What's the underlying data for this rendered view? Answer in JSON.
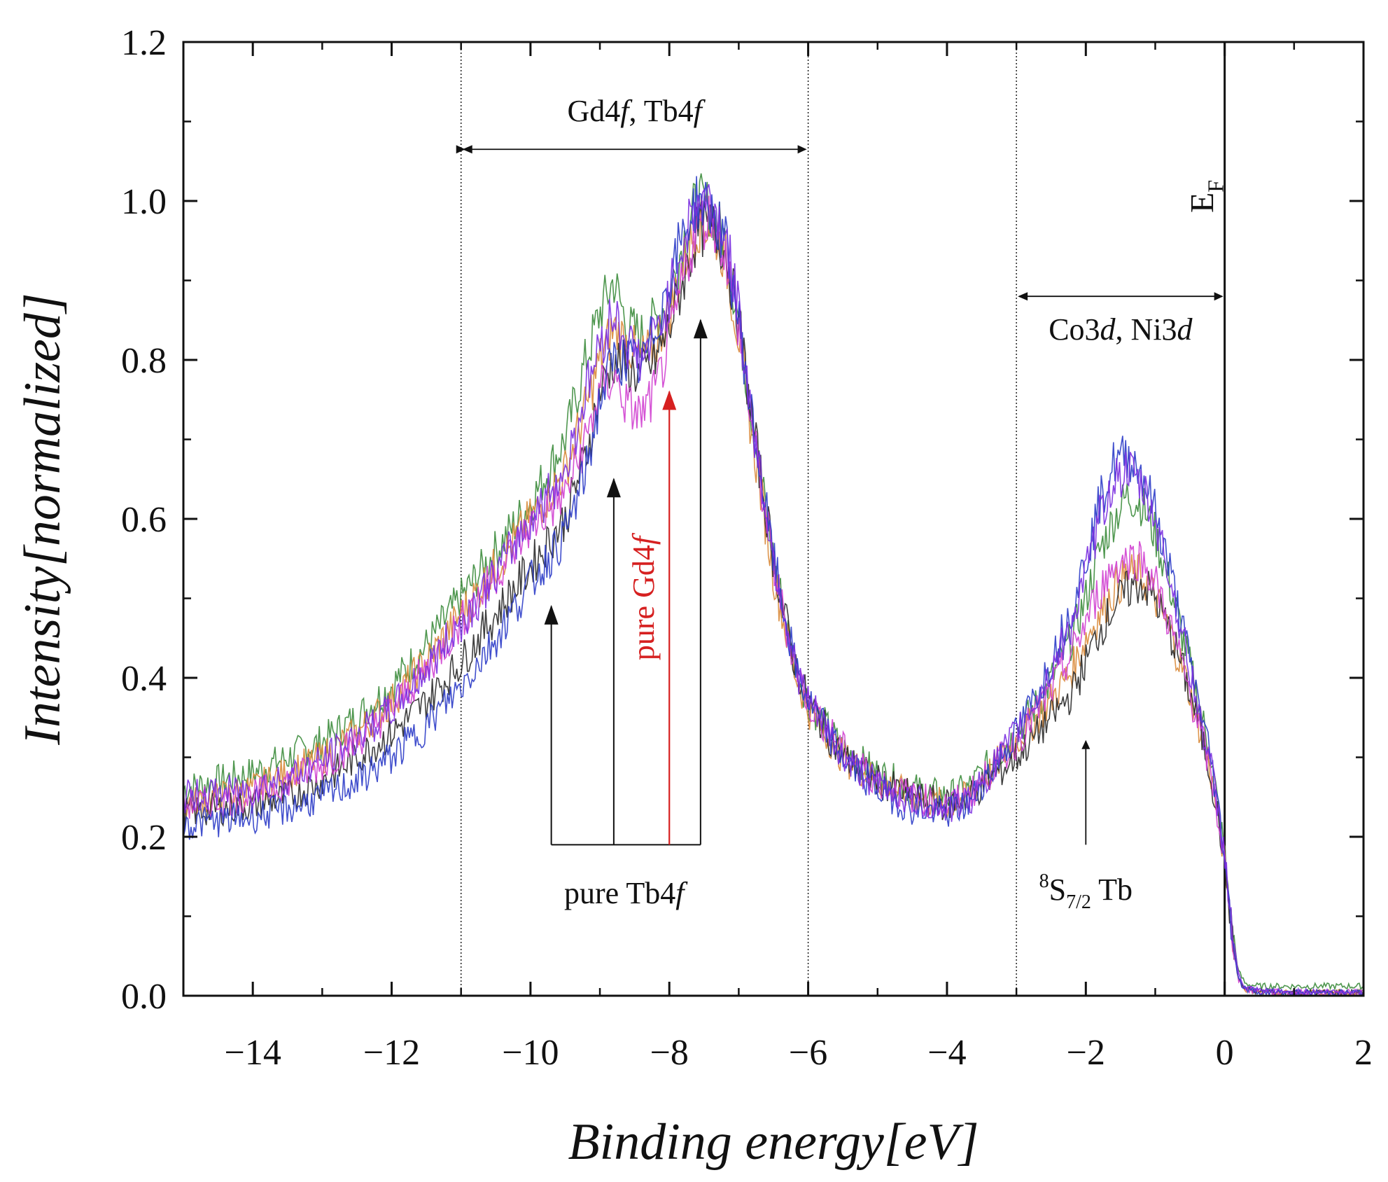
{
  "chart_data": {
    "type": "line",
    "title": "",
    "xlabel": "Binding energy[eV]",
    "ylabel": "Intensity[normalized]",
    "xlim": [
      -15,
      2
    ],
    "ylim": [
      0,
      1.2
    ],
    "x_ticks": [
      -14,
      -12,
      -10,
      -8,
      -6,
      -4,
      -2,
      0,
      2
    ],
    "y_ticks": [
      0.0,
      0.2,
      0.4,
      0.6,
      0.8,
      1.0,
      1.2
    ],
    "x_tick_labels": [
      "−14",
      "−12",
      "−10",
      "−8",
      "−6",
      "−4",
      "−2",
      "0",
      "2"
    ],
    "y_tick_labels": [
      "0.0",
      "0.2",
      "0.4",
      "0.6",
      "0.8",
      "1.0",
      "1.2"
    ],
    "grid": false,
    "vertical_lines": [
      -11,
      -6,
      -3,
      0
    ],
    "fermi_level_label": "E",
    "fermi_level_subscript": "F",
    "annotations": {
      "gd_tb_4f": {
        "text": "Gd4",
        "italic_part": "f",
        "mid": ", Tb4",
        "italic_end": "f",
        "x_range": [
          -11,
          -6
        ],
        "y": 1.065
      },
      "co_ni_3d": {
        "text": "Co3",
        "italic_part": "d",
        "mid": ", Ni3",
        "italic_end": "d",
        "x_range": [
          -3,
          0
        ],
        "y": 0.88
      },
      "pure_tb4f": {
        "text": "pure Tb4",
        "italic_part": "f",
        "arrow_x": [
          -9.7,
          -8.8,
          -7.55
        ],
        "arrow_tips": [
          0.49,
          0.65,
          0.85
        ],
        "base_y": 0.19
      },
      "pure_gd4f": {
        "text": "pure Gd4",
        "italic_part": "f",
        "arrow_x": -8.0,
        "arrow_tip": 0.76,
        "base_y": 0.19
      },
      "s72_tb": {
        "sup": "8",
        "base": "S",
        "sub": "7/2",
        "tail": " Tb",
        "arrow_x": -2.0,
        "arrow_base": 0.19,
        "arrow_tip": 0.32
      }
    },
    "series": [
      {
        "name": "green",
        "color": "#3c8c3c",
        "x": [
          -15,
          -14.5,
          -14,
          -13.5,
          -13,
          -12.5,
          -12,
          -11.5,
          -11,
          -10.5,
          -10,
          -9.5,
          -9.2,
          -9,
          -8.8,
          -8.6,
          -8.4,
          -8.2,
          -8,
          -7.8,
          -7.6,
          -7.4,
          -7.2,
          -7,
          -6.8,
          -6.5,
          -6.2,
          -6,
          -5.5,
          -5,
          -4.5,
          -4,
          -3.7,
          -3.4,
          -3,
          -2.6,
          -2.2,
          -2,
          -1.8,
          -1.6,
          -1.4,
          -1.2,
          -1,
          -0.8,
          -0.6,
          -0.4,
          -0.2,
          0,
          0.1,
          0.2,
          0.3,
          0.5,
          1,
          2
        ],
        "y": [
          0.26,
          0.27,
          0.28,
          0.3,
          0.32,
          0.35,
          0.39,
          0.44,
          0.5,
          0.56,
          0.62,
          0.7,
          0.8,
          0.86,
          0.9,
          0.84,
          0.83,
          0.85,
          0.88,
          0.95,
          1.0,
          0.99,
          0.95,
          0.85,
          0.72,
          0.55,
          0.42,
          0.37,
          0.31,
          0.28,
          0.26,
          0.25,
          0.26,
          0.29,
          0.33,
          0.38,
          0.45,
          0.5,
          0.56,
          0.6,
          0.63,
          0.62,
          0.58,
          0.52,
          0.45,
          0.38,
          0.3,
          0.18,
          0.09,
          0.03,
          0.015,
          0.012,
          0.012,
          0.012
        ]
      },
      {
        "name": "orange",
        "color": "#d98a3a",
        "x": [
          -15,
          -14.5,
          -14,
          -13.5,
          -13,
          -12.5,
          -12,
          -11.5,
          -11,
          -10.5,
          -10,
          -9.5,
          -9.2,
          -9,
          -8.8,
          -8.6,
          -8.4,
          -8.2,
          -8,
          -7.8,
          -7.6,
          -7.4,
          -7.2,
          -7,
          -6.8,
          -6.5,
          -6.2,
          -6,
          -5.5,
          -5,
          -4.5,
          -4,
          -3.7,
          -3.4,
          -3,
          -2.6,
          -2.2,
          -2,
          -1.8,
          -1.6,
          -1.4,
          -1.2,
          -1,
          -0.8,
          -0.6,
          -0.4,
          -0.2,
          0,
          0.1,
          0.2,
          0.3,
          0.5,
          1,
          2
        ],
        "y": [
          0.24,
          0.25,
          0.26,
          0.28,
          0.3,
          0.33,
          0.37,
          0.42,
          0.48,
          0.54,
          0.6,
          0.66,
          0.74,
          0.8,
          0.84,
          0.82,
          0.8,
          0.82,
          0.86,
          0.92,
          0.97,
          0.97,
          0.93,
          0.83,
          0.7,
          0.53,
          0.41,
          0.36,
          0.3,
          0.27,
          0.25,
          0.24,
          0.25,
          0.28,
          0.32,
          0.36,
          0.41,
          0.45,
          0.48,
          0.51,
          0.53,
          0.53,
          0.5,
          0.46,
          0.41,
          0.35,
          0.28,
          0.17,
          0.08,
          0.02,
          0.008,
          0.005,
          0.004,
          0.004
        ]
      },
      {
        "name": "black",
        "color": "#2a2a2a",
        "x": [
          -15,
          -14.5,
          -14,
          -13.5,
          -13,
          -12.5,
          -12,
          -11.5,
          -11,
          -10.5,
          -10,
          -9.5,
          -9.2,
          -9,
          -8.8,
          -8.6,
          -8.4,
          -8.2,
          -8,
          -7.8,
          -7.6,
          -7.4,
          -7.2,
          -7,
          -6.8,
          -6.5,
          -6.2,
          -6,
          -5.5,
          -5,
          -4.5,
          -4,
          -3.7,
          -3.4,
          -3,
          -2.6,
          -2.2,
          -2,
          -1.8,
          -1.6,
          -1.4,
          -1.2,
          -1,
          -0.8,
          -0.6,
          -0.4,
          -0.2,
          0,
          0.1,
          0.2,
          0.3,
          0.5,
          1,
          2
        ],
        "y": [
          0.23,
          0.235,
          0.24,
          0.25,
          0.27,
          0.3,
          0.33,
          0.37,
          0.42,
          0.48,
          0.54,
          0.6,
          0.68,
          0.76,
          0.8,
          0.79,
          0.78,
          0.8,
          0.84,
          0.9,
          0.96,
          0.97,
          0.94,
          0.85,
          0.72,
          0.55,
          0.42,
          0.37,
          0.3,
          0.27,
          0.25,
          0.24,
          0.25,
          0.27,
          0.3,
          0.34,
          0.38,
          0.42,
          0.46,
          0.49,
          0.51,
          0.52,
          0.5,
          0.46,
          0.41,
          0.35,
          0.28,
          0.17,
          0.08,
          0.02,
          0.008,
          0.005,
          0.004,
          0.004
        ]
      },
      {
        "name": "magenta",
        "color": "#d040d0",
        "x": [
          -15,
          -14.5,
          -14,
          -13.5,
          -13,
          -12.5,
          -12,
          -11.5,
          -11,
          -10.5,
          -10,
          -9.5,
          -9.2,
          -9,
          -8.8,
          -8.6,
          -8.4,
          -8.2,
          -8,
          -7.8,
          -7.6,
          -7.4,
          -7.2,
          -7,
          -6.8,
          -6.5,
          -6.2,
          -6,
          -5.5,
          -5,
          -4.5,
          -4,
          -3.7,
          -3.4,
          -3,
          -2.6,
          -2.2,
          -2,
          -1.8,
          -1.6,
          -1.4,
          -1.2,
          -1,
          -0.8,
          -0.6,
          -0.4,
          -0.2,
          0,
          0.1,
          0.2,
          0.3,
          0.5,
          1,
          2
        ],
        "y": [
          0.24,
          0.245,
          0.25,
          0.27,
          0.29,
          0.32,
          0.36,
          0.41,
          0.47,
          0.53,
          0.59,
          0.63,
          0.7,
          0.76,
          0.78,
          0.74,
          0.73,
          0.76,
          0.82,
          0.9,
          0.97,
          0.98,
          0.94,
          0.84,
          0.71,
          0.54,
          0.42,
          0.37,
          0.31,
          0.27,
          0.25,
          0.24,
          0.25,
          0.28,
          0.32,
          0.37,
          0.43,
          0.47,
          0.51,
          0.54,
          0.55,
          0.55,
          0.52,
          0.47,
          0.41,
          0.35,
          0.28,
          0.17,
          0.08,
          0.02,
          0.008,
          0.005,
          0.004,
          0.004
        ]
      },
      {
        "name": "blue",
        "color": "#2c3cc8",
        "x": [
          -15,
          -14.5,
          -14,
          -13.5,
          -13,
          -12.5,
          -12,
          -11.5,
          -11,
          -10.5,
          -10,
          -9.5,
          -9.2,
          -9,
          -8.8,
          -8.6,
          -8.4,
          -8.2,
          -8,
          -7.8,
          -7.6,
          -7.4,
          -7.2,
          -7,
          -6.8,
          -6.5,
          -6.2,
          -6,
          -5.5,
          -5,
          -4.5,
          -4,
          -3.7,
          -3.4,
          -3,
          -2.6,
          -2.2,
          -2,
          -1.8,
          -1.6,
          -1.4,
          -1.2,
          -1,
          -0.8,
          -0.6,
          -0.4,
          -0.2,
          0,
          0.1,
          0.2,
          0.3,
          0.5,
          1,
          2
        ],
        "y": [
          0.215,
          0.22,
          0.225,
          0.235,
          0.25,
          0.27,
          0.3,
          0.34,
          0.39,
          0.45,
          0.52,
          0.58,
          0.66,
          0.75,
          0.8,
          0.8,
          0.79,
          0.84,
          0.9,
          0.96,
          1.0,
          0.99,
          0.95,
          0.85,
          0.72,
          0.55,
          0.42,
          0.37,
          0.3,
          0.26,
          0.235,
          0.23,
          0.24,
          0.28,
          0.33,
          0.4,
          0.49,
          0.55,
          0.62,
          0.67,
          0.68,
          0.66,
          0.61,
          0.54,
          0.46,
          0.38,
          0.3,
          0.18,
          0.08,
          0.02,
          0.008,
          0.005,
          0.004,
          0.004
        ]
      },
      {
        "name": "violet",
        "color": "#7a2ee0",
        "x": [
          -15,
          -14.5,
          -14,
          -13.5,
          -13,
          -12.5,
          -12,
          -11.5,
          -11,
          -10.5,
          -10,
          -9.5,
          -9.2,
          -9,
          -8.8,
          -8.6,
          -8.4,
          -8.2,
          -8,
          -7.8,
          -7.6,
          -7.4,
          -7.2,
          -7,
          -6.8,
          -6.5,
          -6.2,
          -6,
          -5.5,
          -5,
          -4.5,
          -4,
          -3.7,
          -3.4,
          -3,
          -2.6,
          -2.2,
          -2,
          -1.8,
          -1.6,
          -1.4,
          -1.2,
          -1,
          -0.8,
          -0.6,
          -0.4,
          -0.2,
          0,
          0.1,
          0.2,
          0.3,
          0.5,
          1,
          2
        ],
        "y": [
          0.25,
          0.255,
          0.26,
          0.275,
          0.295,
          0.325,
          0.36,
          0.41,
          0.47,
          0.53,
          0.6,
          0.66,
          0.76,
          0.82,
          0.86,
          0.82,
          0.8,
          0.83,
          0.88,
          0.95,
          1.0,
          1.0,
          0.96,
          0.86,
          0.72,
          0.55,
          0.42,
          0.37,
          0.3,
          0.265,
          0.245,
          0.235,
          0.245,
          0.28,
          0.33,
          0.39,
          0.47,
          0.53,
          0.6,
          0.65,
          0.66,
          0.64,
          0.6,
          0.53,
          0.45,
          0.37,
          0.29,
          0.18,
          0.09,
          0.025,
          0.01,
          0.006,
          0.005,
          0.005
        ]
      }
    ]
  }
}
